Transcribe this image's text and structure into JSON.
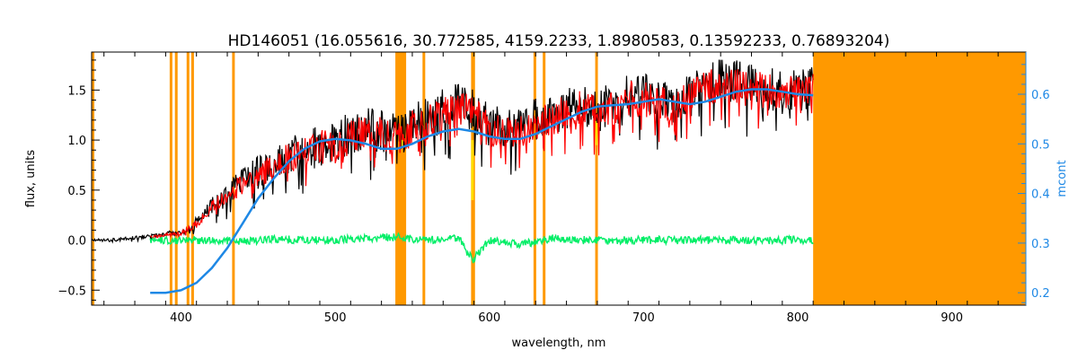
{
  "chart_data": {
    "type": "line",
    "title": "HD146051    (16.055616, 30.772585, 4159.2233, 1.8980583, 0.13592233, 0.76893204)",
    "xlabel": "wavelength, nm",
    "ylabel": "flux, units",
    "ylabel_right": "mcont",
    "xlim": [
      342,
      948
    ],
    "ylim": [
      -0.65,
      1.88
    ],
    "ylim_right": [
      0.175,
      0.685
    ],
    "x_ticks": [
      400,
      500,
      600,
      700,
      800,
      900
    ],
    "y_ticks": [
      -0.5,
      0.0,
      0.5,
      1.0,
      1.5
    ],
    "y_tick_labels": [
      "−0.5",
      "0.0",
      "0.5",
      "1.0",
      "1.5"
    ],
    "y_right_ticks": [
      0.2,
      0.3,
      0.4,
      0.5,
      0.6
    ],
    "y_right_tick_labels": [
      "0.2",
      "0.3",
      "0.4",
      "0.5",
      "0.6"
    ],
    "colors": {
      "observed": "#000000",
      "model": "#ff0000",
      "residual": "#00ee66",
      "mcont": "#1e88e5",
      "masked": "#ff9900",
      "highlight": "#ffdd00"
    },
    "masked_lines_nm": [
      393.5,
      396.9,
      404.5,
      407.5,
      434.0,
      557.5,
      589.0,
      589.8,
      629.5,
      635.5,
      669.5
    ],
    "masked_bands_nm": [
      [
        539,
        546
      ],
      [
        810,
        948
      ]
    ],
    "series": [
      {
        "role": "observed",
        "x": [
          342,
          360,
          380,
          400,
          410,
          420,
          430,
          440,
          450,
          460,
          470,
          480,
          490,
          500,
          510,
          520,
          530,
          540,
          550,
          560,
          570,
          580,
          590,
          600,
          610,
          620,
          630,
          640,
          650,
          660,
          670,
          680,
          690,
          700,
          710,
          720,
          730,
          740,
          750,
          760,
          770,
          780,
          790,
          800,
          810
        ],
        "y": [
          0.0,
          0.01,
          0.04,
          0.08,
          0.18,
          0.35,
          0.45,
          0.6,
          0.68,
          0.75,
          0.85,
          0.9,
          0.95,
          1.0,
          1.05,
          1.1,
          1.1,
          1.05,
          1.15,
          1.2,
          1.3,
          1.35,
          1.3,
          1.15,
          1.1,
          1.15,
          1.2,
          1.25,
          1.3,
          1.35,
          1.3,
          1.35,
          1.45,
          1.45,
          1.4,
          1.35,
          1.45,
          1.55,
          1.6,
          1.58,
          1.55,
          1.52,
          1.48,
          1.5,
          1.52
        ]
      },
      {
        "role": "model",
        "x": [
          380,
          400,
          410,
          420,
          430,
          440,
          450,
          460,
          470,
          480,
          490,
          500,
          510,
          520,
          530,
          540,
          550,
          560,
          570,
          580,
          590,
          600,
          610,
          620,
          630,
          640,
          650,
          660,
          670,
          680,
          690,
          700,
          710,
          720,
          730,
          740,
          750,
          760,
          770,
          780,
          790,
          800,
          810
        ],
        "y": [
          0.03,
          0.07,
          0.16,
          0.33,
          0.43,
          0.57,
          0.66,
          0.73,
          0.82,
          0.87,
          0.92,
          0.97,
          1.02,
          1.07,
          1.07,
          1.02,
          1.12,
          1.17,
          1.27,
          1.32,
          1.27,
          1.12,
          1.07,
          1.12,
          1.17,
          1.22,
          1.27,
          1.32,
          1.27,
          1.32,
          1.42,
          1.42,
          1.37,
          1.32,
          1.42,
          1.52,
          1.57,
          1.55,
          1.52,
          1.49,
          1.45,
          1.47,
          1.49
        ]
      },
      {
        "role": "residual",
        "x": [
          380,
          400,
          420,
          440,
          460,
          480,
          500,
          520,
          540,
          560,
          580,
          589,
          600,
          620,
          640,
          660,
          680,
          700,
          720,
          740,
          760,
          780,
          800,
          810
        ],
        "y": [
          0.0,
          0.0,
          0.0,
          -0.01,
          0.01,
          0.0,
          0.0,
          0.02,
          0.03,
          0.0,
          0.02,
          -0.2,
          0.0,
          -0.05,
          0.02,
          0.0,
          0.0,
          0.0,
          0.0,
          0.0,
          0.0,
          0.0,
          0.0,
          0.0
        ]
      },
      {
        "role": "mcont",
        "x": [
          380,
          390,
          400,
          410,
          420,
          430,
          440,
          450,
          460,
          470,
          480,
          490,
          500,
          510,
          520,
          530,
          540,
          550,
          560,
          570,
          580,
          590,
          600,
          610,
          620,
          630,
          640,
          650,
          660,
          670,
          680,
          690,
          700,
          710,
          720,
          730,
          740,
          750,
          760,
          770,
          780,
          790,
          800,
          810
        ],
        "y": [
          0.2,
          0.2,
          0.205,
          0.22,
          0.25,
          0.29,
          0.34,
          0.39,
          0.43,
          0.465,
          0.49,
          0.505,
          0.51,
          0.507,
          0.5,
          0.49,
          0.49,
          0.5,
          0.515,
          0.525,
          0.53,
          0.525,
          0.515,
          0.51,
          0.51,
          0.52,
          0.535,
          0.55,
          0.565,
          0.575,
          0.578,
          0.58,
          0.585,
          0.59,
          0.585,
          0.58,
          0.585,
          0.595,
          0.605,
          0.61,
          0.61,
          0.605,
          0.6,
          0.598
        ]
      }
    ]
  }
}
